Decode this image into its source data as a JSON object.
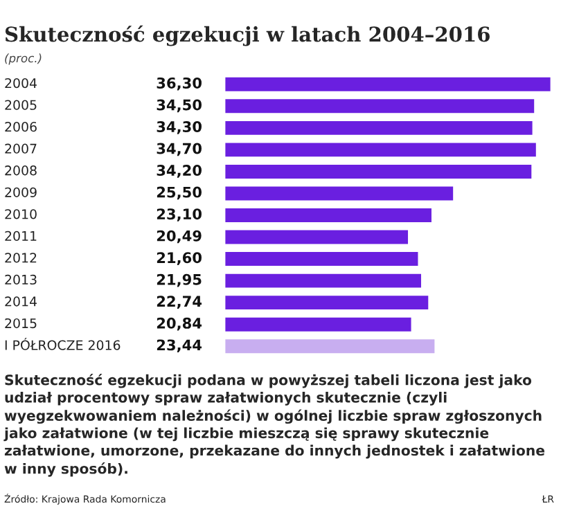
{
  "chart_data": {
    "type": "bar",
    "orientation": "horizontal",
    "title": "Skuteczność egzekucji w latach 2004–2016",
    "subtitle": "(proc.)",
    "categories": [
      "2004",
      "2005",
      "2006",
      "2007",
      "2008",
      "2009",
      "2010",
      "2011",
      "2012",
      "2013",
      "2014",
      "2015",
      "I PÓŁROCZE 2016"
    ],
    "values": [
      36.3,
      34.5,
      34.3,
      34.7,
      34.2,
      25.5,
      23.1,
      20.49,
      21.6,
      21.95,
      22.74,
      20.84,
      23.44
    ],
    "value_labels": [
      "36,30",
      "34,50",
      "34,30",
      "34,70",
      "34,20",
      "25,50",
      "23,10",
      "20,49",
      "21,60",
      "21,95",
      "22,74",
      "20,84",
      "23,44"
    ],
    "colors": [
      "#6a1fe0",
      "#6a1fe0",
      "#6a1fe0",
      "#6a1fe0",
      "#6a1fe0",
      "#6a1fe0",
      "#6a1fe0",
      "#6a1fe0",
      "#6a1fe0",
      "#6a1fe0",
      "#6a1fe0",
      "#6a1fe0",
      "#c8aef0"
    ],
    "annotations": [
      "Skuteczność egzekucji podana w powyższej tabeli liczona jest jako udział procentowy spraw załatwionych skutecznie (czyli wyegzekwowaniem należności) w ogólnej liczbie spraw zgłoszonych jako załatwione (w tej liczbie mieszczą się sprawy skutecznie załatwione, umorzone, przekazane do innych jednostek i załatwione w inny sposób).",
      "Źródło: Krajowa Rada Komornicza",
      "ŁR"
    ]
  }
}
